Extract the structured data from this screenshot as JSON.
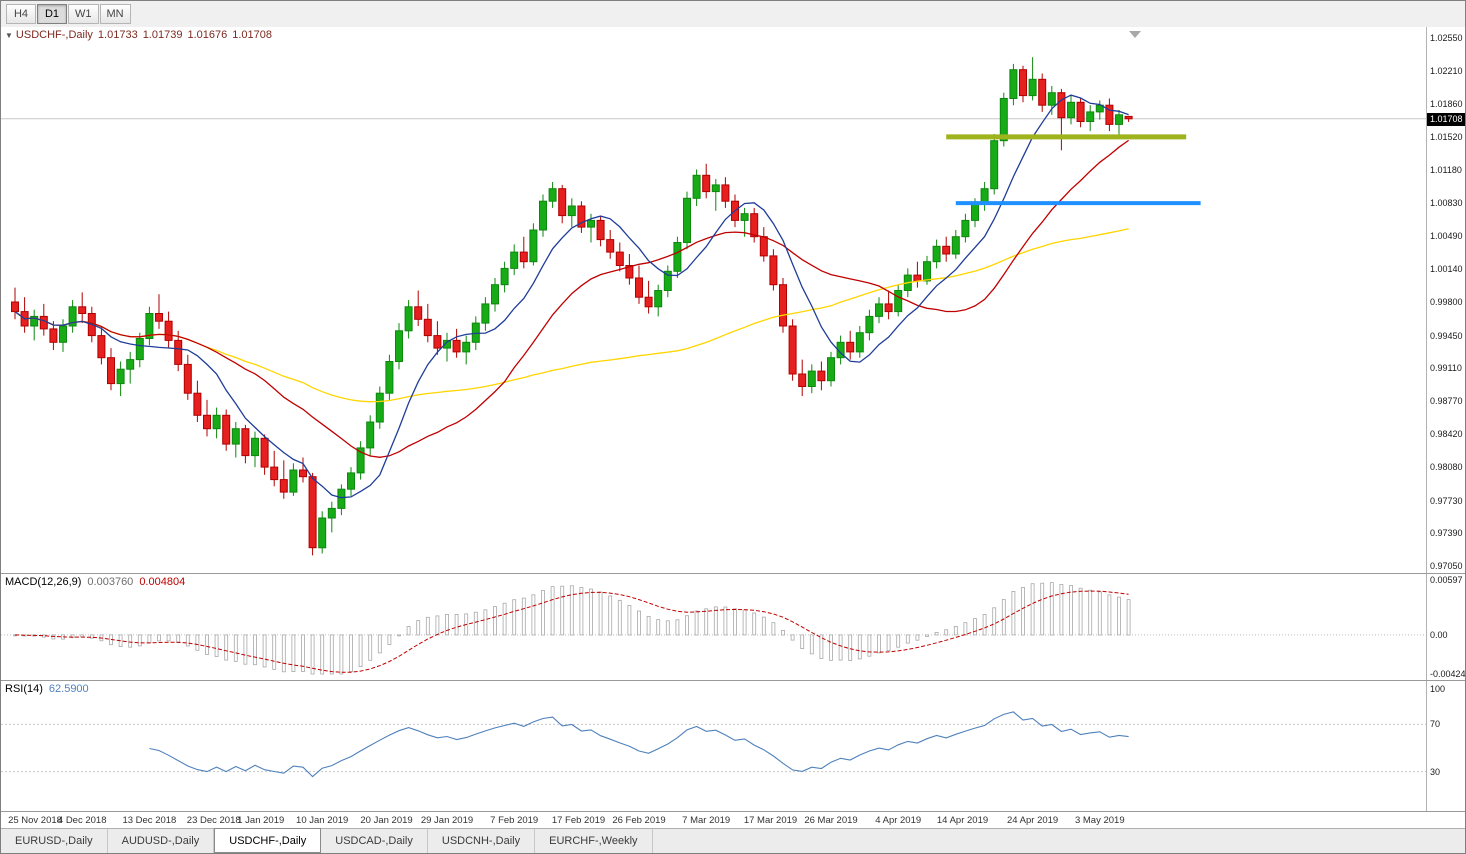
{
  "toolbar": {
    "timeframes": [
      {
        "label": "H4",
        "active": false
      },
      {
        "label": "D1",
        "active": true
      },
      {
        "label": "W1",
        "active": false
      },
      {
        "label": "MN",
        "active": false
      }
    ]
  },
  "chart": {
    "title": {
      "collapse_icon": "▼",
      "symbol": "USDCHF-,Daily",
      "open": "1.01733",
      "high": "1.01739",
      "low": "1.01676",
      "close": "1.01708"
    },
    "current_price": "1.01708"
  },
  "macd": {
    "label": "MACD(12,26,9)",
    "value_main": "0.003760",
    "value_signal": "0.004804",
    "fast": 12,
    "slow": 26,
    "signal": 9,
    "axis": [
      "0.00597",
      "0.00",
      "-0.004243"
    ]
  },
  "rsi": {
    "label": "RSI(14)",
    "value": "62.5900",
    "period": 14,
    "levels": [
      70,
      30
    ],
    "axis": [
      "100",
      "70",
      "30"
    ]
  },
  "tabs": [
    {
      "label": "EURUSD-,Daily",
      "active": false
    },
    {
      "label": "AUDUSD-,Daily",
      "active": false
    },
    {
      "label": "USDCHF-,Daily",
      "active": true
    },
    {
      "label": "USDCAD-,Daily",
      "active": false
    },
    {
      "label": "USDCNH-,Daily",
      "active": false
    },
    {
      "label": "EURCHF-,Weekly",
      "active": false
    }
  ],
  "chart_data": {
    "type": "candlestick",
    "symbol": "USDCHF",
    "timeframe": "Daily",
    "bid": 1.01708,
    "y_axis_labels": [
      "1.02550",
      "1.02210",
      "1.01860",
      "1.01520",
      "1.01180",
      "1.00830",
      "1.00490",
      "1.00140",
      "0.99800",
      "0.99450",
      "0.99110",
      "0.98770",
      "0.98420",
      "0.98080",
      "0.97730",
      "0.97390",
      "0.97050"
    ],
    "time_labels": [
      {
        "text": "25 Nov 2018",
        "i": 0.7
      },
      {
        "text": "4 Dec 2018",
        "i": 7
      },
      {
        "text": "13 Dec 2018",
        "i": 14
      },
      {
        "text": "23 Dec 2018",
        "i": 20.7
      },
      {
        "text": "1 Jan 2019",
        "i": 25.6
      },
      {
        "text": "10 Jan 2019",
        "i": 32
      },
      {
        "text": "20 Jan 2019",
        "i": 38.7
      },
      {
        "text": "29 Jan 2019",
        "i": 45
      },
      {
        "text": "7 Feb 2019",
        "i": 52
      },
      {
        "text": "17 Feb 2019",
        "i": 58.7
      },
      {
        "text": "26 Feb 2019",
        "i": 65
      },
      {
        "text": "7 Mar 2019",
        "i": 72
      },
      {
        "text": "17 Mar 2019",
        "i": 78.7
      },
      {
        "text": "26 Mar 2019",
        "i": 85
      },
      {
        "text": "4 Apr 2019",
        "i": 92
      },
      {
        "text": "14 Apr 2019",
        "i": 98.7
      },
      {
        "text": "24 Apr 2019",
        "i": 106
      },
      {
        "text": "3 May 2019",
        "i": 113
      }
    ],
    "moving_averages": [
      {
        "name": "ma-fast",
        "period": 8,
        "color": "#1f3d99"
      },
      {
        "name": "ma-mid",
        "period": 21,
        "color": "#c00000"
      },
      {
        "name": "ma-slow",
        "period": 55,
        "color": "#ffd500"
      }
    ],
    "rays": [
      {
        "name": "resistance-line-green",
        "price": 1.0152,
        "i1": 97,
        "i2": 122,
        "color": "#9fb41c",
        "width": 5
      },
      {
        "name": "support-line-blue",
        "price": 1.0083,
        "i1": 98,
        "i2": 123.5,
        "color": "#1e90ff",
        "width": 4
      }
    ],
    "colors": {
      "bull": "#17ab17",
      "bull_border": "#0d870d",
      "bear": "#e61f1f",
      "bear_border": "#b00000",
      "bid_line": "#c8c8c8",
      "macd_hist": "#a8a8a8",
      "macd_signal": "#c00000",
      "rsi_line": "#4f81bd",
      "level_line": "#c8c8c8"
    },
    "ohlc": [
      [
        0.998,
        0.9995,
        0.9962,
        0.997
      ],
      [
        0.997,
        0.9985,
        0.9948,
        0.9955
      ],
      [
        0.9955,
        0.9972,
        0.994,
        0.9965
      ],
      [
        0.9965,
        0.9978,
        0.9945,
        0.9952
      ],
      [
        0.9952,
        0.996,
        0.993,
        0.9938
      ],
      [
        0.9938,
        0.9962,
        0.9928,
        0.9955
      ],
      [
        0.9955,
        0.9982,
        0.9948,
        0.9975
      ],
      [
        0.9975,
        0.999,
        0.9958,
        0.9968
      ],
      [
        0.9968,
        0.9975,
        0.9938,
        0.9945
      ],
      [
        0.9945,
        0.9955,
        0.9915,
        0.9922
      ],
      [
        0.9922,
        0.9932,
        0.9888,
        0.9895
      ],
      [
        0.9895,
        0.9918,
        0.9882,
        0.991
      ],
      [
        0.991,
        0.9928,
        0.9895,
        0.992
      ],
      [
        0.992,
        0.9948,
        0.9912,
        0.9942
      ],
      [
        0.9942,
        0.9975,
        0.9935,
        0.9968
      ],
      [
        0.9968,
        0.9988,
        0.9952,
        0.996
      ],
      [
        0.996,
        0.997,
        0.9932,
        0.994
      ],
      [
        0.994,
        0.995,
        0.9908,
        0.9915
      ],
      [
        0.9915,
        0.9925,
        0.9878,
        0.9885
      ],
      [
        0.9885,
        0.9898,
        0.9855,
        0.9862
      ],
      [
        0.9862,
        0.9878,
        0.984,
        0.9848
      ],
      [
        0.9848,
        0.987,
        0.9838,
        0.9862
      ],
      [
        0.9862,
        0.9868,
        0.9825,
        0.9832
      ],
      [
        0.9832,
        0.9855,
        0.9818,
        0.9848
      ],
      [
        0.9848,
        0.9852,
        0.9812,
        0.982
      ],
      [
        0.982,
        0.9845,
        0.9808,
        0.9838
      ],
      [
        0.9838,
        0.9842,
        0.98,
        0.9808
      ],
      [
        0.9808,
        0.9825,
        0.9788,
        0.9795
      ],
      [
        0.9795,
        0.9815,
        0.9775,
        0.9782
      ],
      [
        0.9782,
        0.9812,
        0.9778,
        0.9805
      ],
      [
        0.9805,
        0.9818,
        0.9792,
        0.9798
      ],
      [
        0.9798,
        0.9802,
        0.9716,
        0.9724
      ],
      [
        0.9724,
        0.9762,
        0.9718,
        0.9755
      ],
      [
        0.9755,
        0.9772,
        0.974,
        0.9765
      ],
      [
        0.9765,
        0.979,
        0.9758,
        0.9785
      ],
      [
        0.9785,
        0.9808,
        0.9778,
        0.9802
      ],
      [
        0.9802,
        0.9835,
        0.9795,
        0.9828
      ],
      [
        0.9828,
        0.9862,
        0.982,
        0.9855
      ],
      [
        0.9855,
        0.9892,
        0.9848,
        0.9885
      ],
      [
        0.9885,
        0.9925,
        0.9878,
        0.9918
      ],
      [
        0.9918,
        0.9958,
        0.991,
        0.995
      ],
      [
        0.995,
        0.9982,
        0.9942,
        0.9975
      ],
      [
        0.9975,
        0.9992,
        0.9955,
        0.9962
      ],
      [
        0.9962,
        0.9978,
        0.9938,
        0.9945
      ],
      [
        0.9945,
        0.996,
        0.9925,
        0.9932
      ],
      [
        0.9932,
        0.9948,
        0.9918,
        0.994
      ],
      [
        0.994,
        0.9952,
        0.9922,
        0.9928
      ],
      [
        0.9928,
        0.9945,
        0.9915,
        0.9938
      ],
      [
        0.9938,
        0.9965,
        0.993,
        0.9958
      ],
      [
        0.9958,
        0.9985,
        0.995,
        0.9978
      ],
      [
        0.9978,
        1.0005,
        0.997,
        0.9998
      ],
      [
        0.9998,
        1.0022,
        0.999,
        1.0015
      ],
      [
        1.0015,
        1.004,
        1.0008,
        1.0032
      ],
      [
        1.0032,
        1.0048,
        1.0015,
        1.0022
      ],
      [
        1.0022,
        1.0062,
        1.0018,
        1.0055
      ],
      [
        1.0055,
        1.0092,
        1.0048,
        1.0085
      ],
      [
        1.0085,
        1.0105,
        1.0078,
        1.0098
      ],
      [
        1.0098,
        1.0102,
        1.0062,
        1.007
      ],
      [
        1.007,
        1.0088,
        1.0058,
        1.008
      ],
      [
        1.008,
        1.0085,
        1.0052,
        1.0058
      ],
      [
        1.0058,
        1.0072,
        1.0042,
        1.0065
      ],
      [
        1.0065,
        1.007,
        1.0038,
        1.0045
      ],
      [
        1.0045,
        1.0055,
        1.0025,
        1.0032
      ],
      [
        1.0032,
        1.0042,
        1.0012,
        1.0018
      ],
      [
        1.0018,
        1.003,
        0.9998,
        1.0005
      ],
      [
        1.0005,
        1.0018,
        0.9978,
        0.9985
      ],
      [
        0.9985,
        1.0002,
        0.9968,
        0.9975
      ],
      [
        0.9975,
        0.9998,
        0.9965,
        0.9992
      ],
      [
        0.9992,
        1.0018,
        0.9985,
        1.0012
      ],
      [
        1.0012,
        1.0048,
        1.0005,
        1.0042
      ],
      [
        1.0042,
        1.0095,
        1.0035,
        1.0088
      ],
      [
        1.0088,
        1.0118,
        1.008,
        1.0112
      ],
      [
        1.0112,
        1.0124,
        1.0088,
        1.0095
      ],
      [
        1.0095,
        1.0108,
        1.0075,
        1.0102
      ],
      [
        1.0102,
        1.011,
        1.0078,
        1.0085
      ],
      [
        1.0085,
        1.0092,
        1.0058,
        1.0065
      ],
      [
        1.0065,
        1.0078,
        1.0048,
        1.0072
      ],
      [
        1.0072,
        1.0078,
        1.0042,
        1.0048
      ],
      [
        1.0048,
        1.0058,
        1.0022,
        1.0028
      ],
      [
        1.0028,
        1.0035,
        0.9992,
        0.9998
      ],
      [
        0.9998,
        1.0005,
        0.9948,
        0.9955
      ],
      [
        0.9955,
        0.9962,
        0.9898,
        0.9905
      ],
      [
        0.9905,
        0.992,
        0.9882,
        0.9892
      ],
      [
        0.9892,
        0.9915,
        0.9885,
        0.9908
      ],
      [
        0.9908,
        0.9918,
        0.9888,
        0.9898
      ],
      [
        0.9898,
        0.9928,
        0.9892,
        0.9922
      ],
      [
        0.9922,
        0.9945,
        0.9915,
        0.9938
      ],
      [
        0.9938,
        0.995,
        0.992,
        0.9928
      ],
      [
        0.9928,
        0.9955,
        0.9922,
        0.9948
      ],
      [
        0.9948,
        0.9972,
        0.994,
        0.9965
      ],
      [
        0.9965,
        0.9985,
        0.9958,
        0.9978
      ],
      [
        0.9978,
        0.9992,
        0.9962,
        0.997
      ],
      [
        0.997,
        0.9998,
        0.9965,
        0.9992
      ],
      [
        0.9992,
        1.0015,
        0.9985,
        1.0008
      ],
      [
        1.0008,
        1.0022,
        0.9995,
        1.0002
      ],
      [
        1.0002,
        1.0028,
        0.9998,
        1.0022
      ],
      [
        1.0022,
        1.0045,
        1.0015,
        1.0038
      ],
      [
        1.0038,
        1.0048,
        1.0022,
        1.003
      ],
      [
        1.003,
        1.0055,
        1.0025,
        1.0048
      ],
      [
        1.0048,
        1.0072,
        1.0042,
        1.0065
      ],
      [
        1.0065,
        1.0088,
        1.0058,
        1.0082
      ],
      [
        1.0082,
        1.0105,
        1.0075,
        1.0098
      ],
      [
        1.0098,
        1.0155,
        1.0092,
        1.0148
      ],
      [
        1.0148,
        1.0198,
        1.0142,
        1.0192
      ],
      [
        1.0192,
        1.0228,
        1.0185,
        1.0222
      ],
      [
        1.0222,
        1.0226,
        1.0188,
        1.0195
      ],
      [
        1.0195,
        1.0235,
        1.019,
        1.0212
      ],
      [
        1.0212,
        1.0218,
        1.0178,
        1.0185
      ],
      [
        1.0185,
        1.0205,
        1.0175,
        1.0198
      ],
      [
        1.0198,
        1.0202,
        1.0138,
        1.0172
      ],
      [
        1.0172,
        1.0195,
        1.0165,
        1.0188
      ],
      [
        1.0188,
        1.0192,
        1.0162,
        1.0168
      ],
      [
        1.0168,
        1.0185,
        1.0158,
        1.0178
      ],
      [
        1.0178,
        1.019,
        1.017,
        1.0185
      ],
      [
        1.0185,
        1.0192,
        1.0158,
        1.0165
      ],
      [
        1.0165,
        1.018,
        1.0152,
        1.0175
      ],
      [
        1.01733,
        1.01739,
        1.01676,
        1.01708
      ]
    ]
  }
}
